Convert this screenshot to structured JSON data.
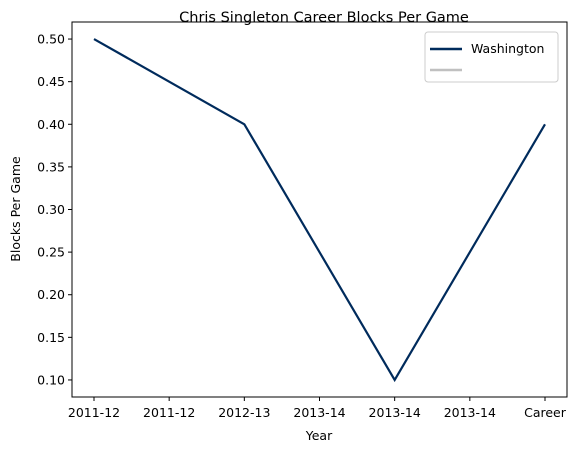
{
  "chart_data": {
    "type": "line",
    "title": "Chris Singleton  Career Blocks Per Game",
    "xlabel": "Year",
    "ylabel": "Blocks Per Game",
    "categories": [
      "2011-12",
      "2011-12",
      "2012-13",
      "2013-14",
      "2013-14",
      "2013-14",
      "Career"
    ],
    "ylim": [
      0.08,
      0.52
    ],
    "yticks": [
      "0.10",
      "0.15",
      "0.20",
      "0.25",
      "0.30",
      "0.35",
      "0.40",
      "0.45",
      "0.50"
    ],
    "series": [
      {
        "name": "Washington",
        "color": "#002b5c",
        "points": [
          {
            "x_index": 0,
            "y": 0.5
          },
          {
            "x_index": 2,
            "y": 0.4
          },
          {
            "x_index": 4,
            "y": 0.1
          },
          {
            "x_index": 6,
            "y": 0.4
          }
        ]
      },
      {
        "name": "",
        "color": "#c0c0c0",
        "points": []
      }
    ],
    "legend": "top-right",
    "grid": false
  }
}
